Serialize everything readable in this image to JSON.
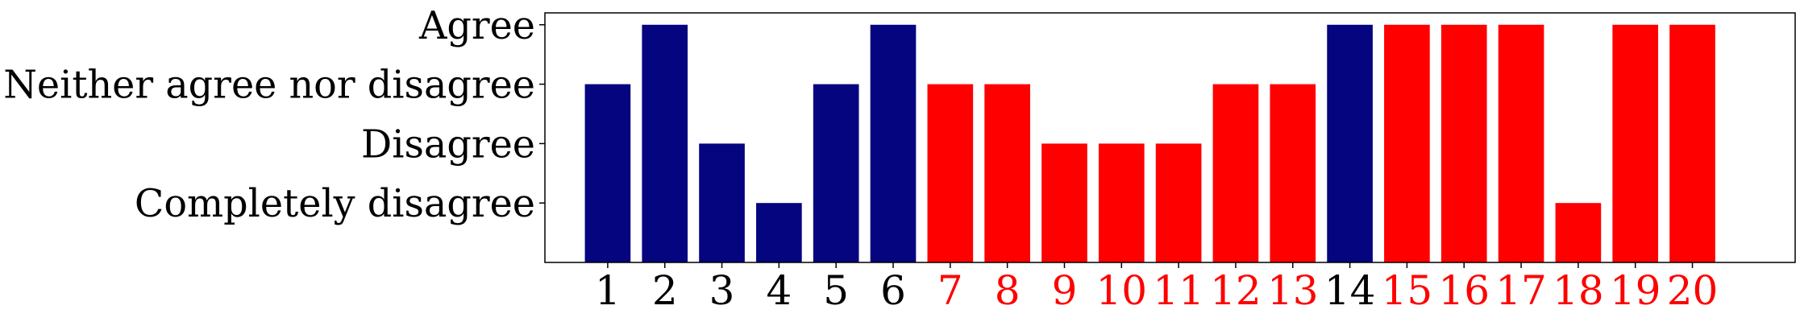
{
  "chart_data": {
    "type": "bar",
    "title": "",
    "xlabel": "",
    "ylabel": "",
    "categories": [
      "1",
      "2",
      "3",
      "4",
      "5",
      "6",
      "7",
      "8",
      "9",
      "10",
      "11",
      "12",
      "13",
      "14",
      "15",
      "16",
      "17",
      "18",
      "19",
      "20"
    ],
    "values": [
      3,
      4,
      2,
      1,
      3,
      4,
      3,
      3,
      2,
      2,
      2,
      3,
      3,
      4,
      4,
      4,
      4,
      1,
      4,
      4
    ],
    "highlight": [
      false,
      false,
      false,
      false,
      false,
      false,
      true,
      true,
      true,
      true,
      true,
      true,
      true,
      false,
      true,
      true,
      true,
      true,
      true,
      true
    ],
    "ylim": [
      0,
      4.2
    ],
    "y_ticks": [
      {
        "value": 1,
        "label": "Completely disagree"
      },
      {
        "value": 2,
        "label": "Disagree"
      },
      {
        "value": 3,
        "label": "Neither agree nor disagree"
      },
      {
        "value": 4,
        "label": "Agree"
      }
    ],
    "colors": {
      "default_bar": "#05057f",
      "highlight_bar": "#ff0000",
      "default_label": "#000000",
      "highlight_label": "#ff0000"
    },
    "grid": false,
    "legend": "none"
  }
}
